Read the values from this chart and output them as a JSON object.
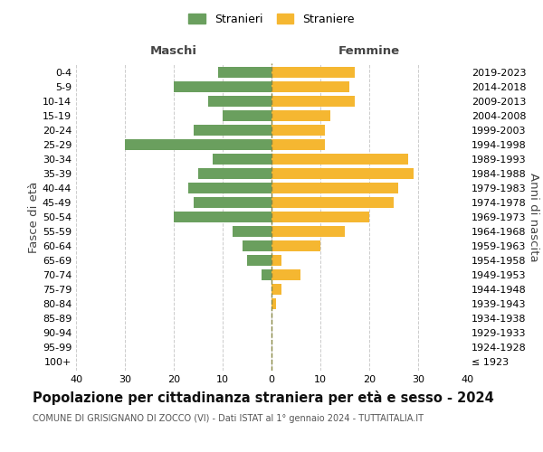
{
  "age_groups": [
    "100+",
    "95-99",
    "90-94",
    "85-89",
    "80-84",
    "75-79",
    "70-74",
    "65-69",
    "60-64",
    "55-59",
    "50-54",
    "45-49",
    "40-44",
    "35-39",
    "30-34",
    "25-29",
    "20-24",
    "15-19",
    "10-14",
    "5-9",
    "0-4"
  ],
  "birth_years": [
    "≤ 1923",
    "1924-1928",
    "1929-1933",
    "1934-1938",
    "1939-1943",
    "1944-1948",
    "1949-1953",
    "1954-1958",
    "1959-1963",
    "1964-1968",
    "1969-1973",
    "1974-1978",
    "1979-1983",
    "1984-1988",
    "1989-1993",
    "1994-1998",
    "1999-2003",
    "2004-2008",
    "2009-2013",
    "2014-2018",
    "2019-2023"
  ],
  "males": [
    0,
    0,
    0,
    0,
    0,
    0,
    2,
    5,
    6,
    8,
    20,
    16,
    17,
    15,
    12,
    30,
    16,
    10,
    13,
    20,
    11
  ],
  "females": [
    0,
    0,
    0,
    0,
    1,
    2,
    6,
    2,
    10,
    15,
    20,
    25,
    26,
    29,
    28,
    11,
    11,
    12,
    17,
    16,
    17
  ],
  "male_color": "#6a9f5e",
  "female_color": "#f5b731",
  "background_color": "#ffffff",
  "grid_color": "#cccccc",
  "title": "Popolazione per cittadinanza straniera per età e sesso - 2024",
  "subtitle": "COMUNE DI GRISIGNANO DI ZOCCO (VI) - Dati ISTAT al 1° gennaio 2024 - TUTTAITALIA.IT",
  "xlabel_left": "Maschi",
  "xlabel_right": "Femmine",
  "ylabel_left": "Fasce di età",
  "ylabel_right": "Anni di nascita",
  "legend_male": "Stranieri",
  "legend_female": "Straniere",
  "xlim": 40,
  "tick_fontsize": 8,
  "title_fontsize": 10.5,
  "subtitle_fontsize": 7,
  "label_fontsize": 9.5
}
